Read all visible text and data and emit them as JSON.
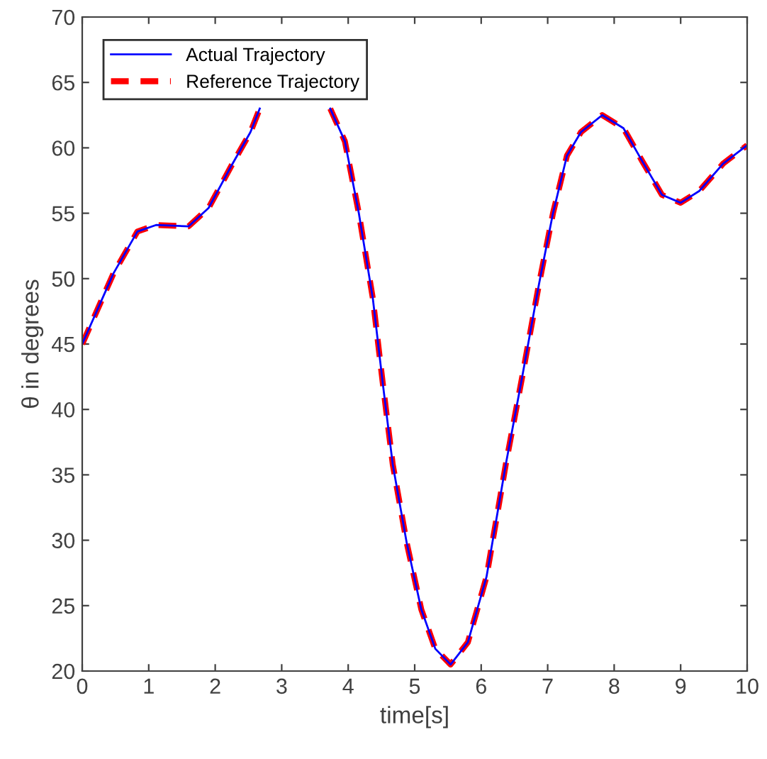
{
  "chart_data": {
    "type": "line",
    "xlabel": "time[s]",
    "ylabel": "θ in degrees",
    "x": [
      0,
      0.47,
      0.83,
      1.11,
      1.6,
      1.9,
      2.24,
      2.53,
      2.67,
      3.2,
      3.73,
      3.95,
      4.16,
      4.37,
      4.52,
      4.67,
      4.88,
      5.1,
      5.31,
      5.54,
      5.8,
      6.08,
      6.37,
      6.61,
      6.87,
      7.08,
      7.29,
      7.5,
      7.82,
      8.14,
      8.42,
      8.72,
      9.0,
      9.28,
      9.64,
      10
    ],
    "series": [
      {
        "name": "Actual Trajectory",
        "color": "#0000ff",
        "line_style": "solid",
        "values": [
          45,
          50.4,
          53.6,
          54.1,
          54.0,
          55.4,
          58.6,
          61.2,
          63,
          null,
          63,
          60.5,
          55,
          48.5,
          42,
          35.8,
          29.8,
          24.7,
          21.7,
          20.5,
          22.2,
          27.2,
          35.8,
          42.3,
          49.6,
          55,
          59.4,
          61.2,
          62.5,
          61.5,
          59,
          56.4,
          55.8,
          56.7,
          58.8,
          60.2
        ]
      },
      {
        "name": "Reference Trajectory",
        "color": "#ff0000",
        "line_style": "dashed",
        "values": [
          45,
          50.4,
          53.6,
          54.1,
          54.0,
          55.4,
          58.6,
          61.2,
          63,
          null,
          63,
          60.5,
          55,
          48.5,
          42,
          35.8,
          29.8,
          24.7,
          21.7,
          20.5,
          22.2,
          27.2,
          35.8,
          42.3,
          49.6,
          55,
          59.4,
          61.2,
          62.5,
          61.5,
          59,
          56.4,
          55.8,
          56.7,
          58.8,
          60.2
        ]
      }
    ],
    "xlim": [
      0,
      10
    ],
    "ylim": [
      20,
      70
    ],
    "xticks": [
      0,
      1,
      2,
      3,
      4,
      5,
      6,
      7,
      8,
      9,
      10
    ],
    "yticks": [
      20,
      25,
      30,
      35,
      40,
      45,
      50,
      55,
      60,
      65,
      70
    ],
    "grid": false,
    "legend": "top left",
    "marker": "none"
  }
}
